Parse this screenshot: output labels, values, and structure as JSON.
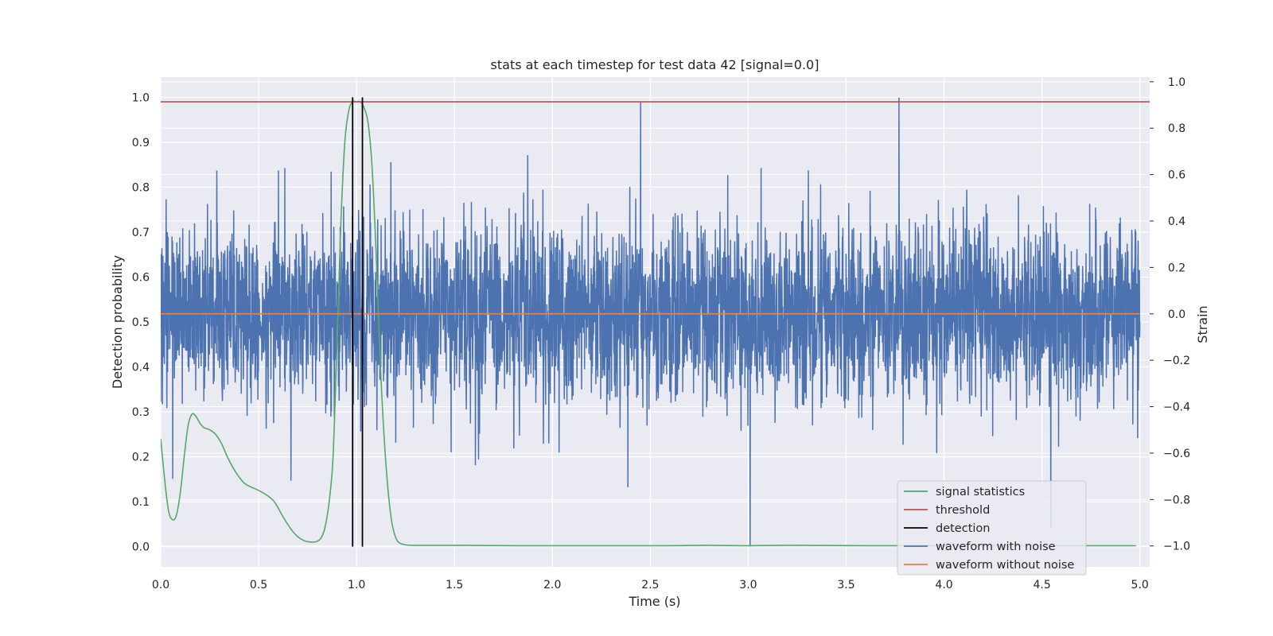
{
  "chart_data": {
    "type": "line",
    "title": "stats at each timestep for test data 42 [signal=0.0]",
    "xlabel": "Time (s)",
    "ylabel": "Detection probability",
    "y2label": "Strain",
    "xlim": [
      0.0,
      5.05
    ],
    "ylim": [
      -0.045,
      1.045
    ],
    "y2lim": [
      -1.09,
      1.02
    ],
    "xticks": [
      0.0,
      0.5,
      1.0,
      1.5,
      2.0,
      2.5,
      3.0,
      3.5,
      4.0,
      4.5,
      5.0
    ],
    "xtick_labels": [
      "0.0",
      "0.5",
      "1.0",
      "1.5",
      "2.0",
      "2.5",
      "3.0",
      "3.5",
      "4.0",
      "4.5",
      "5.0"
    ],
    "yticks": [
      0.0,
      0.1,
      0.2,
      0.3,
      0.4,
      0.5,
      0.6,
      0.7,
      0.8,
      0.9,
      1.0
    ],
    "ytick_labels": [
      "0.0",
      "0.1",
      "0.2",
      "0.3",
      "0.4",
      "0.5",
      "0.6",
      "0.7",
      "0.8",
      "0.9",
      "1.0"
    ],
    "y2ticks": [
      -1.0,
      -0.8,
      -0.6,
      -0.4,
      -0.2,
      0.0,
      0.2,
      0.4,
      0.6,
      0.8,
      1.0
    ],
    "y2tick_labels": [
      "−1.0",
      "−0.8",
      "−0.6",
      "−0.4",
      "−0.2",
      "0.0",
      "0.2",
      "0.4",
      "0.6",
      "0.8",
      "1.0"
    ],
    "grid": true,
    "legend_position": "bottom-right",
    "series": [
      {
        "name": "signal statistics",
        "axis": "left",
        "color": "#55a868",
        "x": [
          0.0,
          0.02,
          0.04,
          0.06,
          0.08,
          0.1,
          0.12,
          0.14,
          0.16,
          0.18,
          0.2,
          0.22,
          0.25,
          0.28,
          0.31,
          0.34,
          0.37,
          0.4,
          0.43,
          0.46,
          0.5,
          0.54,
          0.58,
          0.62,
          0.66,
          0.7,
          0.74,
          0.78,
          0.8,
          0.82,
          0.84,
          0.86,
          0.88,
          0.9,
          0.92,
          0.94,
          0.96,
          0.98,
          1.0,
          1.02,
          1.04,
          1.06,
          1.08,
          1.1,
          1.12,
          1.14,
          1.16,
          1.18,
          1.2,
          1.22,
          1.25,
          1.28,
          1.35,
          1.5,
          1.8,
          2.2,
          2.6,
          2.8,
          3.0,
          3.2,
          3.6,
          4.0,
          4.4,
          4.8,
          4.98
        ],
        "y": [
          0.24,
          0.15,
          0.08,
          0.06,
          0.07,
          0.12,
          0.2,
          0.27,
          0.295,
          0.29,
          0.275,
          0.265,
          0.26,
          0.25,
          0.23,
          0.2,
          0.175,
          0.155,
          0.14,
          0.133,
          0.125,
          0.115,
          0.1,
          0.07,
          0.042,
          0.022,
          0.012,
          0.01,
          0.012,
          0.02,
          0.045,
          0.1,
          0.2,
          0.45,
          0.72,
          0.9,
          0.97,
          0.99,
          0.99,
          0.99,
          0.975,
          0.94,
          0.84,
          0.65,
          0.42,
          0.25,
          0.13,
          0.055,
          0.02,
          0.008,
          0.004,
          0.003,
          0.003,
          0.003,
          0.002,
          0.002,
          0.002,
          0.003,
          0.002,
          0.003,
          0.002,
          0.002,
          0.002,
          0.002,
          0.002
        ]
      },
      {
        "name": "threshold",
        "axis": "left",
        "color": "#c44e52",
        "value": 0.99
      },
      {
        "name": "detection",
        "axis": "left",
        "color": "#000000",
        "x": [
          0.98,
          1.03
        ],
        "y_range": [
          0.0,
          1.0
        ]
      },
      {
        "name": "waveform with noise",
        "axis": "right",
        "color": "#4c72b0",
        "description_range": [
          -1.0,
          1.0
        ],
        "x_range": [
          0.0,
          5.0
        ],
        "num_points": 4000,
        "notable_peaks": [
          {
            "x": 2.45,
            "y": 0.91
          },
          {
            "x": 3.77,
            "y": 0.93
          },
          {
            "x": 3.01,
            "y": -1.0
          }
        ]
      },
      {
        "name": "waveform without noise",
        "axis": "right",
        "color": "#dd8452",
        "value": 0.0
      }
    ]
  }
}
